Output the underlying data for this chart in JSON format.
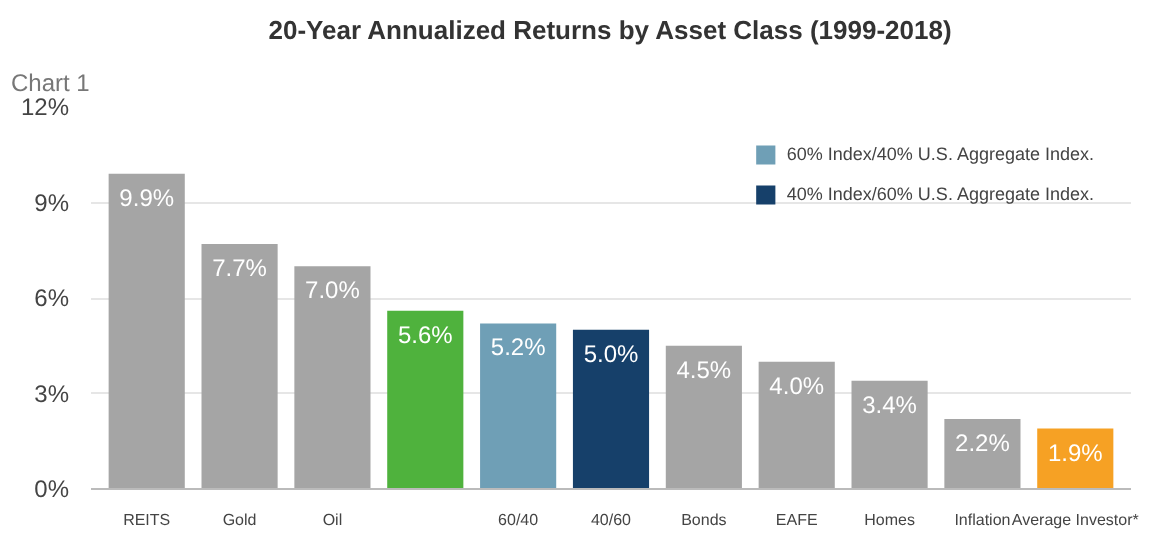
{
  "chart_data": {
    "type": "bar",
    "title": "20-Year Annualized Returns by Asset Class (1999-2018)",
    "annotations": [
      "Chart 1"
    ],
    "categories": [
      "REITS",
      "Gold",
      "Oil",
      null,
      "60/40",
      "40/60",
      "Bonds",
      "EAFE",
      "Homes",
      "Inflation",
      "Average Investor*"
    ],
    "series": [
      {
        "values": [
          9.9,
          7.7,
          7.0,
          5.6,
          null,
          null,
          4.5,
          4.0,
          3.4,
          2.2,
          1.9
        ],
        "colors": [
          "#a5a5a5",
          "#a5a5a5",
          "#a5a5a5",
          "#4fb23d",
          null,
          null,
          "#a5a5a5",
          "#a5a5a5",
          "#a5a5a5",
          "#a5a5a5",
          "#f6a124"
        ],
        "value_labels": [
          "9.9%",
          "7.7%",
          "7.0%",
          "5.6%",
          null,
          null,
          "4.5%",
          "4.0%",
          "3.4%",
          "2.2%",
          "1.9%"
        ]
      },
      {
        "name": "60% Index/40% U.S. Aggregate Index.",
        "color": "#6f9fb6",
        "values": [
          null,
          null,
          null,
          null,
          5.2,
          null,
          null,
          null,
          null,
          null,
          null
        ],
        "value_labels": [
          null,
          null,
          null,
          null,
          "5.2%",
          null,
          null,
          null,
          null,
          null,
          null
        ]
      },
      {
        "name": "40% Index/60% U.S. Aggregate Index.",
        "color": "#16406a",
        "values": [
          null,
          null,
          null,
          null,
          null,
          5.0,
          null,
          null,
          null,
          null,
          null
        ],
        "value_labels": [
          null,
          null,
          null,
          null,
          null,
          "5.0%",
          null,
          null,
          null,
          null,
          null
        ]
      }
    ],
    "ylim": [
      0,
      12
    ],
    "yticks": [
      {
        "value": 0,
        "label": "0%"
      },
      {
        "value": 3,
        "label": "3%"
      },
      {
        "value": 6,
        "label": "6%"
      },
      {
        "value": 9,
        "label": "9%"
      },
      {
        "value": 12,
        "label": "12%"
      }
    ],
    "grid": "y",
    "legend": "top right"
  }
}
